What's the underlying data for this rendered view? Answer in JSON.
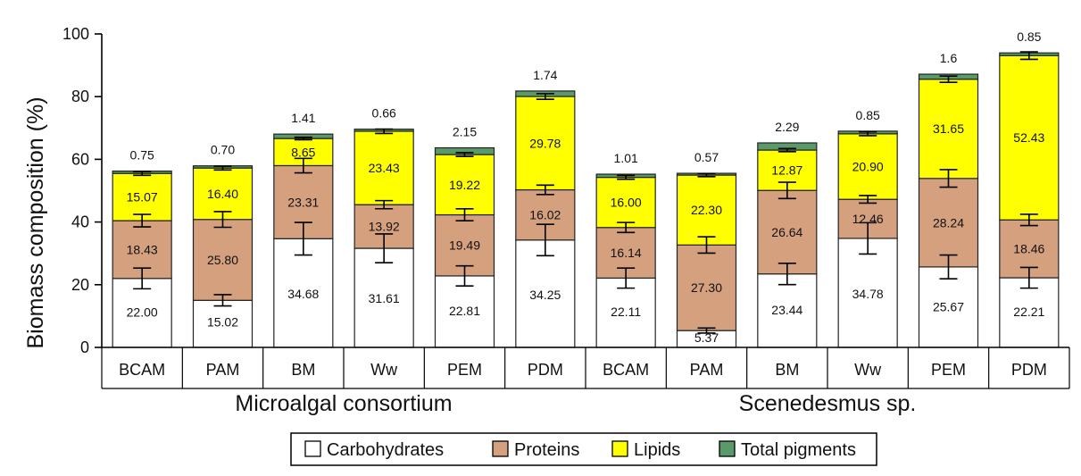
{
  "chart_data": {
    "type": "bar",
    "stacked": true,
    "ylabel": "Biomass composition (%)",
    "ylim": [
      0,
      100
    ],
    "yticks": [
      0,
      20,
      40,
      60,
      80,
      100
    ],
    "grid": false,
    "legend_position": "bottom-center",
    "groups": [
      {
        "name": "Microalgal consortium",
        "categories": [
          "BCAM",
          "PAM",
          "BM",
          "Ww",
          "PEM",
          "PDM"
        ]
      },
      {
        "name": "Scenedesmus sp.",
        "categories": [
          "BCAM",
          "PAM",
          "BM",
          "Ww",
          "PEM",
          "PDM"
        ]
      }
    ],
    "categories": [
      "BCAM",
      "PAM",
      "BM",
      "Ww",
      "PEM",
      "PDM",
      "BCAM",
      "PAM",
      "BM",
      "Ww",
      "PEM",
      "PDM"
    ],
    "series": [
      {
        "name": "Carbohydrates",
        "color": "#ffffff",
        "values": [
          22.0,
          15.02,
          34.68,
          31.61,
          22.81,
          34.25,
          22.11,
          5.37,
          23.44,
          34.78,
          25.67,
          22.21
        ],
        "labels": [
          "22.00",
          "15.02",
          "34.68",
          "31.61",
          "22.81",
          "34.25",
          "22.11",
          "5.37",
          "23.44",
          "34.78",
          "25.67",
          "22.21"
        ],
        "errors": [
          3.3,
          1.8,
          5.2,
          4.6,
          3.2,
          5.0,
          3.2,
          0.8,
          3.4,
          5.0,
          3.8,
          3.3
        ]
      },
      {
        "name": "Proteins",
        "color": "#d4a07e",
        "values": [
          18.43,
          25.8,
          23.31,
          13.92,
          19.49,
          16.02,
          16.14,
          27.3,
          26.64,
          12.46,
          28.24,
          18.46
        ],
        "labels": [
          "18.43",
          "25.80",
          "23.31",
          "13.92",
          "19.49",
          "16.02",
          "16.14",
          "27.30",
          "26.64",
          "12.46",
          "28.24",
          "18.46"
        ],
        "errors": [
          2.0,
          2.5,
          2.3,
          1.3,
          1.9,
          1.5,
          1.6,
          2.6,
          2.6,
          1.2,
          2.8,
          1.8
        ]
      },
      {
        "name": "Lipids",
        "color": "#ffff00",
        "values": [
          15.07,
          16.4,
          8.65,
          23.43,
          19.22,
          29.78,
          16.0,
          22.3,
          12.87,
          20.9,
          31.65,
          52.43
        ],
        "labels": [
          "15.07",
          "16.40",
          "8.65",
          "23.43",
          "19.22",
          "29.78",
          "16.00",
          "22.30",
          "12.87",
          "20.90",
          "31.65",
          "52.43"
        ],
        "errors": [
          0.6,
          0.6,
          0.4,
          0.7,
          0.6,
          0.9,
          0.6,
          0.5,
          0.5,
          0.6,
          1.0,
          1.2
        ]
      },
      {
        "name": "Total pigments",
        "color": "#5a9a6a",
        "values": [
          0.75,
          0.7,
          1.41,
          0.66,
          2.15,
          1.74,
          1.01,
          0.57,
          2.29,
          0.85,
          1.6,
          0.85
        ],
        "labels": [
          "0.75",
          "0.70",
          "1.41",
          "0.66",
          "2.15",
          "1.74",
          "1.01",
          "0.57",
          "2.29",
          "0.85",
          "1.6",
          "0.85"
        ]
      }
    ]
  }
}
